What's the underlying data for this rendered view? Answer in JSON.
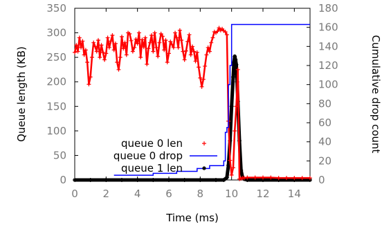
{
  "chart_data": {
    "type": "scatter",
    "title": "",
    "xlabel": "Time (ms)",
    "ylabel": "Queue length (KB)",
    "y2label": "Cumulative drop count",
    "xlim": [
      0,
      15
    ],
    "ylim": [
      0,
      350
    ],
    "y2lim": [
      0,
      180
    ],
    "xticks": [
      "0",
      "2",
      "4",
      "6",
      "8",
      "10",
      "12",
      "14"
    ],
    "yticks": [
      "0",
      "50",
      "100",
      "150",
      "200",
      "250",
      "300",
      "350"
    ],
    "y2ticks": [
      "0",
      "20",
      "40",
      "60",
      "80",
      "100",
      "120",
      "140",
      "160",
      "180"
    ],
    "grid": false,
    "legend_position": "bottom-center",
    "colors": {
      "queue0": "#ff0000",
      "drop0": "#0000ff",
      "queue1": "#000000",
      "tick_label": "#7a7a7a"
    },
    "series": [
      {
        "name": "queue 0 len",
        "axis": "left",
        "marker": "+",
        "x": [
          0.0,
          0.1,
          0.2,
          0.3,
          0.4,
          0.5,
          0.6,
          0.7,
          0.8,
          0.9,
          1.0,
          1.1,
          1.2,
          1.3,
          1.4,
          1.5,
          1.6,
          1.7,
          1.8,
          1.9,
          2.0,
          2.1,
          2.2,
          2.3,
          2.4,
          2.5,
          2.6,
          2.7,
          2.8,
          2.9,
          3.0,
          3.1,
          3.2,
          3.3,
          3.4,
          3.5,
          3.6,
          3.7,
          3.8,
          3.9,
          4.0,
          4.1,
          4.2,
          4.3,
          4.4,
          4.5,
          4.6,
          4.7,
          4.8,
          4.9,
          5.0,
          5.1,
          5.2,
          5.3,
          5.4,
          5.5,
          5.6,
          5.7,
          5.8,
          5.9,
          6.0,
          6.1,
          6.2,
          6.3,
          6.4,
          6.5,
          6.6,
          6.7,
          6.8,
          6.9,
          7.0,
          7.1,
          7.2,
          7.3,
          7.4,
          7.5,
          7.6,
          7.7,
          7.8,
          7.9,
          8.0,
          8.1,
          8.2,
          8.3,
          8.4,
          8.5,
          8.6,
          8.7,
          8.8,
          8.9,
          9.0,
          9.1,
          9.2,
          9.3,
          9.4,
          9.5,
          9.6,
          9.7,
          9.8,
          9.9,
          10.0,
          10.1,
          10.2,
          10.3,
          10.4,
          10.5,
          10.6,
          10.7,
          10.8,
          11.0,
          11.5,
          12.0,
          12.5,
          13.0,
          13.5,
          14.0,
          14.5,
          15.0
        ],
        "y": [
          260,
          275,
          262,
          290,
          270,
          283,
          255,
          265,
          240,
          195,
          210,
          250,
          280,
          272,
          262,
          285,
          250,
          275,
          260,
          245,
          258,
          290,
          270,
          283,
          295,
          265,
          278,
          240,
          225,
          250,
          292,
          268,
          280,
          255,
          300,
          298,
          284,
          262,
          270,
          287,
          278,
          300,
          250,
          286,
          271,
          290,
          236,
          268,
          280,
          295,
          262,
          300,
          270,
          252,
          280,
          298,
          293,
          265,
          285,
          240,
          258,
          282,
          276,
          270,
          300,
          290,
          270,
          305,
          285,
          262,
          245,
          263,
          282,
          296,
          255,
          272,
          262,
          242,
          260,
          230,
          208,
          190,
          205,
          232,
          255,
          270,
          262,
          280,
          290,
          302,
          300,
          303,
          310,
          305,
          308,
          304,
          302,
          296,
          120,
          40,
          10,
          25,
          100,
          150,
          225,
          2,
          3,
          4,
          4,
          5,
          5,
          5,
          5,
          4,
          4,
          4,
          4,
          4
        ]
      },
      {
        "name": "queue 0 drop",
        "axis": "right",
        "style": "step-line",
        "x": [
          2.5,
          5.0,
          6.5,
          7.8,
          8.6,
          9.5,
          9.6,
          9.7,
          9.8,
          9.9,
          10.0,
          10.5,
          15.0
        ],
        "y": [
          5,
          7,
          9,
          12,
          15,
          20,
          50,
          55,
          100,
          120,
          163,
          163,
          163
        ]
      },
      {
        "name": "queue 1 len",
        "axis": "left",
        "marker": "*",
        "x": [
          0.0,
          1.0,
          2.0,
          3.0,
          4.0,
          5.0,
          6.0,
          7.0,
          8.0,
          9.0,
          9.5,
          9.7,
          9.8,
          9.9,
          10.0,
          10.1,
          10.15,
          10.2,
          10.25,
          10.3,
          10.35,
          10.4,
          10.5,
          10.6,
          10.7,
          10.8,
          11.0,
          12.0,
          13.0,
          14.0,
          15.0
        ],
        "y": [
          0,
          0,
          0,
          0,
          0,
          0,
          0,
          0,
          0,
          0,
          0,
          5,
          30,
          80,
          150,
          210,
          240,
          252,
          245,
          235,
          200,
          160,
          80,
          20,
          5,
          2,
          0,
          0,
          0,
          0,
          0
        ]
      }
    ]
  }
}
